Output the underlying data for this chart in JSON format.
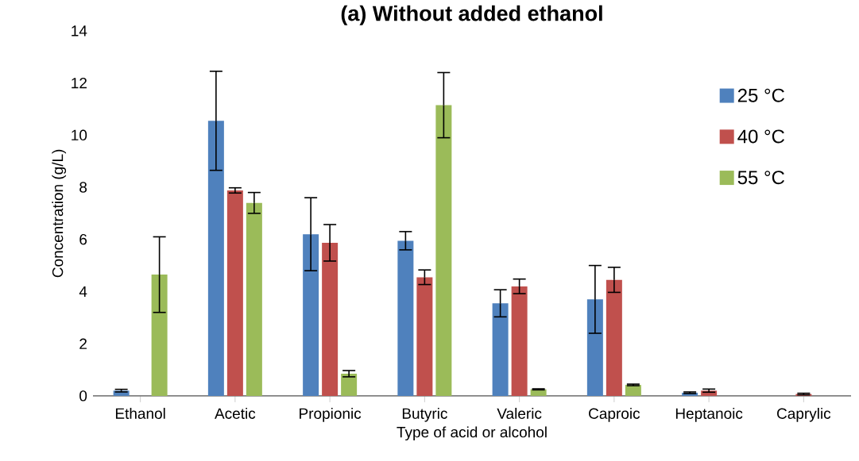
{
  "chart_data": {
    "type": "bar",
    "title": "(a) Without added ethanol",
    "xlabel": "Type of acid or alcohol",
    "ylabel": "Concentration (g/L)",
    "categories": [
      "Ethanol",
      "Acetic",
      "Propionic",
      "Butyric",
      "Valeric",
      "Caproic",
      "Heptanoic",
      "Caprylic"
    ],
    "series": [
      {
        "name": "25 °C",
        "color": "#4f81bd",
        "values": [
          0.2,
          10.55,
          6.2,
          5.95,
          3.55,
          3.7,
          0.12,
          null
        ],
        "errors": [
          0.05,
          1.9,
          1.4,
          0.35,
          0.52,
          1.3,
          0.03,
          null
        ]
      },
      {
        "name": "40 °C",
        "color": "#c0504d",
        "values": [
          null,
          7.88,
          5.87,
          4.55,
          4.2,
          4.45,
          0.2,
          0.07
        ],
        "errors": [
          null,
          0.1,
          0.7,
          0.28,
          0.28,
          0.48,
          0.06,
          0.03
        ]
      },
      {
        "name": "55 °C",
        "color": "#9bbb59",
        "values": [
          4.65,
          7.4,
          0.85,
          11.15,
          0.25,
          0.42,
          null,
          null
        ],
        "errors": [
          1.45,
          0.4,
          0.12,
          1.25,
          0.02,
          0.03,
          null,
          null
        ]
      }
    ],
    "ylim": [
      0,
      14
    ],
    "yticks": [
      0,
      2,
      4,
      6,
      8,
      10,
      12,
      14
    ],
    "legend": "right",
    "grid": false
  }
}
